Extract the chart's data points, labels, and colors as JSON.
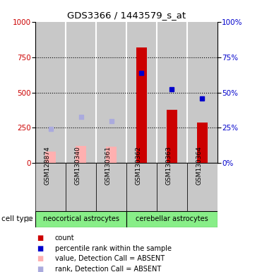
{
  "title": "GDS3366 / 1443579_s_at",
  "samples": [
    "GSM128874",
    "GSM130340",
    "GSM130361",
    "GSM130362",
    "GSM130363",
    "GSM130364"
  ],
  "cell_types": [
    "neocortical astrocytes",
    "cerebellar astrocytes"
  ],
  "red_bars": [
    0,
    0,
    0,
    820,
    380,
    285
  ],
  "pink_bars": [
    80,
    120,
    115,
    0,
    0,
    0
  ],
  "blue_squares": [
    null,
    null,
    null,
    640,
    525,
    460
  ],
  "lightblue_squares": [
    240,
    330,
    295,
    null,
    null,
    null
  ],
  "ylim": [
    0,
    1000
  ],
  "yticks_left": [
    0,
    250,
    500,
    750,
    1000
  ],
  "yticks_right": [
    0,
    25,
    50,
    75,
    100
  ],
  "bar_width": 0.35,
  "red_color": "#CC0000",
  "pink_color": "#FFB0B0",
  "blue_color": "#0000CC",
  "lightblue_color": "#AAAADD",
  "gray_color": "#C8C8C8",
  "green_color": "#88EE88",
  "white_color": "#FFFFFF"
}
